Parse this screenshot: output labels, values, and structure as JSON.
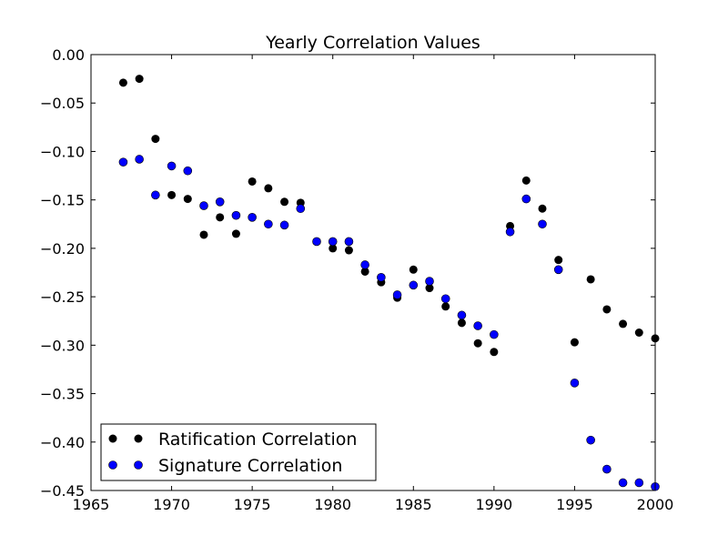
{
  "chart_data": {
    "type": "scatter",
    "title": "Yearly Correlation Values",
    "xlabel": "",
    "ylabel": "",
    "xlim": [
      1965,
      2000
    ],
    "ylim": [
      -0.45,
      0.0
    ],
    "xticks": [
      "1965",
      "1970",
      "1975",
      "1980",
      "1985",
      "1990",
      "1995",
      "2000"
    ],
    "yticks": [
      "0.00",
      "−0.05",
      "−0.10",
      "−0.15",
      "−0.20",
      "−0.25",
      "−0.30",
      "−0.35",
      "−0.40",
      "−0.45"
    ],
    "grid": false,
    "legend_position": "lower-left",
    "series": [
      {
        "name": "Ratification Correlation",
        "color": "#000000",
        "points": [
          [
            1967,
            -0.029
          ],
          [
            1968,
            -0.025
          ],
          [
            1969,
            -0.087
          ],
          [
            1970,
            -0.145
          ],
          [
            1971,
            -0.149
          ],
          [
            1972,
            -0.186
          ],
          [
            1973,
            -0.168
          ],
          [
            1974,
            -0.185
          ],
          [
            1975,
            -0.131
          ],
          [
            1976,
            -0.138
          ],
          [
            1977,
            -0.152
          ],
          [
            1978,
            -0.153
          ],
          [
            1979,
            -0.193
          ],
          [
            1980,
            -0.2
          ],
          [
            1981,
            -0.202
          ],
          [
            1982,
            -0.224
          ],
          [
            1983,
            -0.235
          ],
          [
            1984,
            -0.251
          ],
          [
            1985,
            -0.222
          ],
          [
            1986,
            -0.241
          ],
          [
            1987,
            -0.26
          ],
          [
            1988,
            -0.277
          ],
          [
            1989,
            -0.298
          ],
          [
            1990,
            -0.307
          ],
          [
            1991,
            -0.177
          ],
          [
            1992,
            -0.13
          ],
          [
            1993,
            -0.159
          ],
          [
            1994,
            -0.212
          ],
          [
            1995,
            -0.297
          ],
          [
            1996,
            -0.232
          ],
          [
            1997,
            -0.263
          ],
          [
            1998,
            -0.278
          ],
          [
            1999,
            -0.287
          ],
          [
            2000,
            -0.293
          ]
        ]
      },
      {
        "name": "Signature Correlation",
        "color": "#0000ff",
        "points": [
          [
            1967,
            -0.111
          ],
          [
            1968,
            -0.108
          ],
          [
            1969,
            -0.145
          ],
          [
            1970,
            -0.115
          ],
          [
            1971,
            -0.12
          ],
          [
            1972,
            -0.156
          ],
          [
            1973,
            -0.152
          ],
          [
            1974,
            -0.166
          ],
          [
            1975,
            -0.168
          ],
          [
            1976,
            -0.175
          ],
          [
            1977,
            -0.176
          ],
          [
            1978,
            -0.159
          ],
          [
            1979,
            -0.193
          ],
          [
            1980,
            -0.193
          ],
          [
            1981,
            -0.193
          ],
          [
            1982,
            -0.217
          ],
          [
            1983,
            -0.23
          ],
          [
            1984,
            -0.248
          ],
          [
            1985,
            -0.238
          ],
          [
            1986,
            -0.234
          ],
          [
            1987,
            -0.252
          ],
          [
            1988,
            -0.269
          ],
          [
            1989,
            -0.28
          ],
          [
            1990,
            -0.289
          ],
          [
            1991,
            -0.183
          ],
          [
            1992,
            -0.149
          ],
          [
            1993,
            -0.175
          ],
          [
            1994,
            -0.222
          ],
          [
            1995,
            -0.339
          ],
          [
            1996,
            -0.398
          ],
          [
            1997,
            -0.428
          ],
          [
            1998,
            -0.442
          ],
          [
            1999,
            -0.442
          ],
          [
            2000,
            -0.446
          ]
        ]
      }
    ]
  }
}
